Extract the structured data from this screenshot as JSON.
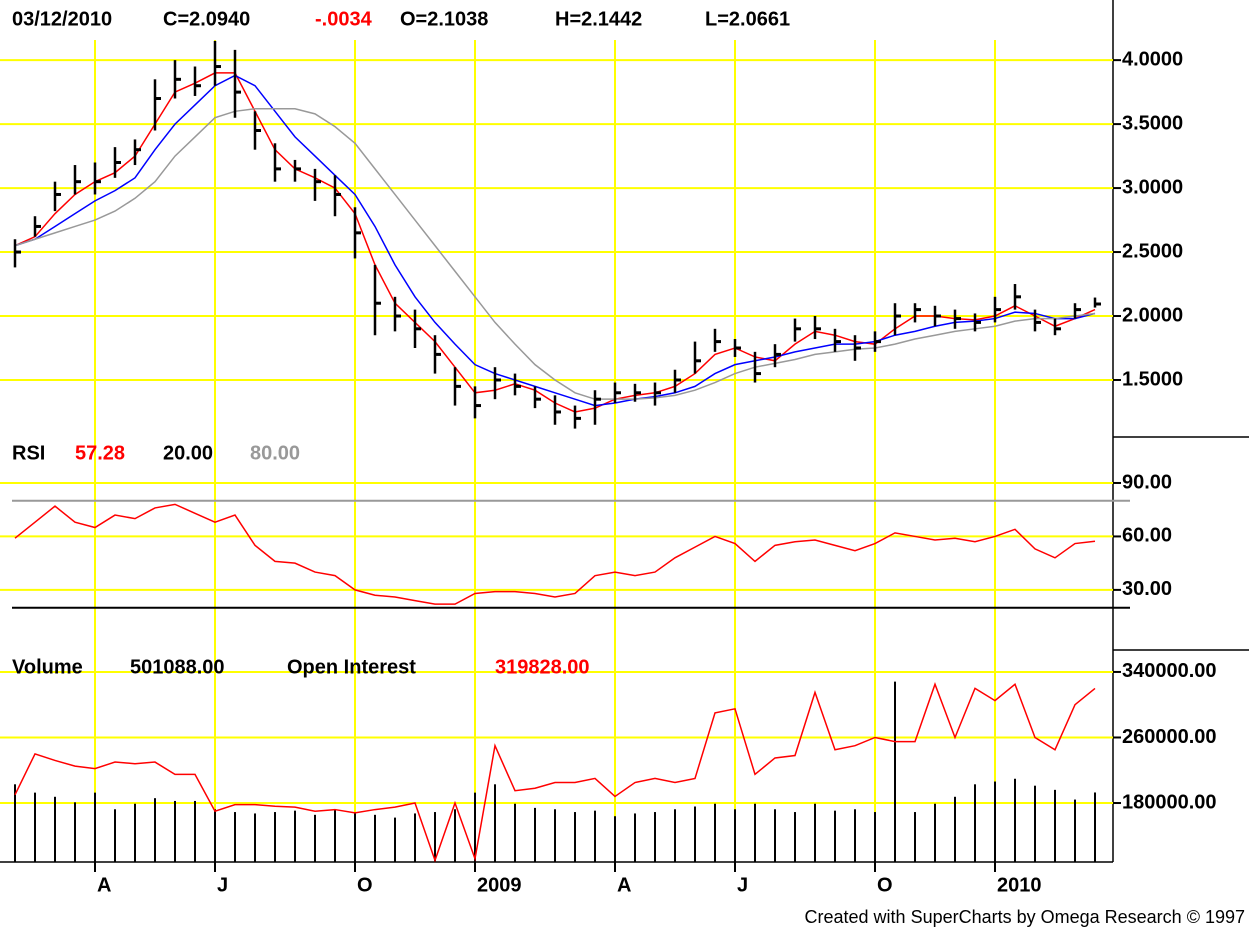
{
  "chart_data": [
    {
      "type": "ohlc",
      "header": {
        "date": "03/12/2010",
        "close": "C=2.0940",
        "change": "-.0034",
        "open": "O=2.1038",
        "high": "H=2.1442",
        "low": "L=2.0661"
      },
      "categories": [
        null,
        null,
        null,
        null,
        "A",
        null,
        null,
        null,
        null,
        null,
        "J",
        null,
        null,
        null,
        null,
        null,
        null,
        "O",
        null,
        null,
        null,
        null,
        null,
        "2009",
        null,
        null,
        null,
        null,
        null,
        null,
        "A",
        null,
        null,
        null,
        null,
        null,
        "J",
        null,
        null,
        null,
        null,
        null,
        null,
        "O",
        null,
        null,
        null,
        null,
        null,
        "2010",
        null,
        null,
        null,
        null,
        null
      ],
      "close": [
        2.5,
        2.7,
        2.95,
        3.05,
        3.05,
        3.2,
        3.3,
        3.7,
        3.85,
        3.8,
        3.95,
        3.75,
        3.45,
        3.15,
        3.15,
        3.05,
        2.95,
        2.65,
        2.1,
        2.0,
        1.9,
        1.7,
        1.45,
        1.3,
        1.5,
        1.45,
        1.35,
        1.25,
        1.2,
        1.35,
        1.4,
        1.4,
        1.4,
        1.5,
        1.65,
        1.8,
        1.75,
        1.55,
        1.7,
        1.9,
        1.9,
        1.8,
        1.75,
        1.8,
        2.0,
        2.05,
        2.0,
        1.98,
        1.95,
        2.05,
        2.15,
        1.95,
        1.9,
        2.05,
        2.094
      ],
      "high": [
        2.6,
        2.78,
        3.05,
        3.18,
        3.2,
        3.32,
        3.38,
        3.85,
        4.0,
        3.95,
        4.15,
        4.08,
        3.6,
        3.35,
        3.22,
        3.15,
        3.1,
        2.85,
        2.4,
        2.15,
        2.05,
        1.85,
        1.6,
        1.45,
        1.6,
        1.55,
        1.45,
        1.38,
        1.3,
        1.42,
        1.48,
        1.47,
        1.48,
        1.58,
        1.8,
        1.9,
        1.82,
        1.72,
        1.78,
        1.98,
        2.0,
        1.9,
        1.85,
        1.88,
        2.1,
        2.1,
        2.08,
        2.05,
        2.02,
        2.15,
        2.25,
        2.05,
        1.98,
        2.1,
        2.1442
      ],
      "low": [
        2.38,
        2.62,
        2.82,
        2.95,
        2.95,
        3.08,
        3.18,
        3.45,
        3.7,
        3.72,
        3.8,
        3.55,
        3.3,
        3.05,
        3.05,
        2.9,
        2.78,
        2.45,
        1.85,
        1.88,
        1.75,
        1.55,
        1.3,
        1.2,
        1.35,
        1.38,
        1.28,
        1.15,
        1.12,
        1.15,
        1.32,
        1.33,
        1.3,
        1.4,
        1.55,
        1.72,
        1.68,
        1.48,
        1.6,
        1.8,
        1.82,
        1.72,
        1.65,
        1.72,
        1.85,
        1.95,
        1.92,
        1.9,
        1.88,
        1.95,
        2.05,
        1.88,
        1.85,
        1.98,
        2.0661
      ],
      "color": "#000000",
      "series": [
        {
          "color": "#ff0000",
          "values": [
            2.55,
            2.62,
            2.8,
            2.95,
            3.05,
            3.12,
            3.25,
            3.5,
            3.75,
            3.82,
            3.9,
            3.9,
            3.6,
            3.3,
            3.15,
            3.08,
            3.0,
            2.8,
            2.4,
            2.1,
            1.95,
            1.8,
            1.6,
            1.4,
            1.42,
            1.47,
            1.42,
            1.32,
            1.25,
            1.28,
            1.35,
            1.38,
            1.4,
            1.45,
            1.55,
            1.7,
            1.75,
            1.68,
            1.65,
            1.78,
            1.88,
            1.85,
            1.8,
            1.78,
            1.9,
            2.0,
            2.0,
            1.98,
            1.97,
            2.0,
            2.08,
            2.0,
            1.92,
            1.98,
            2.05
          ]
        },
        {
          "color": "#0000ff",
          "values": [
            2.55,
            2.6,
            2.7,
            2.8,
            2.9,
            2.98,
            3.08,
            3.3,
            3.5,
            3.65,
            3.8,
            3.88,
            3.8,
            3.6,
            3.4,
            3.25,
            3.1,
            2.95,
            2.7,
            2.4,
            2.15,
            1.95,
            1.78,
            1.62,
            1.55,
            1.5,
            1.45,
            1.4,
            1.35,
            1.3,
            1.32,
            1.35,
            1.37,
            1.4,
            1.45,
            1.55,
            1.62,
            1.65,
            1.68,
            1.72,
            1.75,
            1.78,
            1.78,
            1.8,
            1.85,
            1.88,
            1.92,
            1.95,
            1.96,
            1.98,
            2.03,
            2.02,
            1.98,
            1.98,
            2.02
          ]
        },
        {
          "color": "#999999",
          "values": [
            2.55,
            2.6,
            2.65,
            2.7,
            2.75,
            2.82,
            2.92,
            3.05,
            3.25,
            3.4,
            3.55,
            3.6,
            3.62,
            3.62,
            3.62,
            3.58,
            3.48,
            3.35,
            3.15,
            2.95,
            2.75,
            2.55,
            2.35,
            2.15,
            1.95,
            1.78,
            1.62,
            1.5,
            1.4,
            1.35,
            1.35,
            1.35,
            1.36,
            1.38,
            1.42,
            1.48,
            1.55,
            1.6,
            1.63,
            1.66,
            1.7,
            1.72,
            1.74,
            1.75,
            1.78,
            1.82,
            1.85,
            1.88,
            1.9,
            1.92,
            1.96,
            1.98,
            1.98,
            2.0,
            2.02
          ]
        }
      ],
      "ylim": [
        1.07,
        4.47
      ],
      "yticks": [
        {
          "value": 4,
          "label": "4.0000"
        },
        {
          "value": 3.5,
          "label": "3.5000"
        },
        {
          "value": 3,
          "label": "3.0000"
        },
        {
          "value": 2.5,
          "label": "2.5000"
        },
        {
          "value": 2,
          "label": "2.0000"
        },
        {
          "value": 1.5,
          "label": "1.5000"
        }
      ],
      "grid": true
    },
    {
      "type": "line",
      "series": [
        {
          "name": "RSI",
          "color": "#ff0000",
          "values": [
            59,
            68,
            77,
            68,
            65,
            72,
            70,
            76,
            78,
            73,
            68,
            72,
            55,
            46,
            45,
            40,
            38,
            30,
            27,
            26,
            24,
            22,
            22,
            28,
            29,
            29,
            28,
            26,
            28,
            38,
            40,
            38,
            40,
            48,
            54,
            60,
            56,
            46,
            55,
            57,
            58,
            55,
            52,
            56,
            62,
            60,
            58,
            59,
            57,
            60,
            64,
            53,
            48,
            56,
            57.28
          ]
        }
      ],
      "levels": [
        {
          "value": 20,
          "label": "20.00",
          "color": "#000000"
        },
        {
          "value": 80,
          "label": "80.00",
          "color": "#999999"
        }
      ],
      "ylim": [
        10.3,
        115.8
      ],
      "yticks": [
        {
          "value": 90,
          "label": "90.00"
        },
        {
          "value": 60,
          "label": "60.00"
        },
        {
          "value": 30,
          "label": "30.00"
        }
      ],
      "grid": true
    },
    {
      "type": "bar-line",
      "series": [
        {
          "name": "Volume",
          "color": "#000000",
          "axis": "y2",
          "values": [
            560000,
            500000,
            470000,
            430000,
            500000,
            380000,
            420000,
            460000,
            440000,
            440000,
            380000,
            360000,
            350000,
            360000,
            370000,
            340000,
            380000,
            360000,
            340000,
            320000,
            350000,
            360000,
            380000,
            500000,
            560000,
            420000,
            390000,
            380000,
            360000,
            370000,
            330000,
            350000,
            360000,
            380000,
            400000,
            420000,
            380000,
            420000,
            380000,
            360000,
            420000,
            370000,
            380000,
            360000,
            1300000,
            360000,
            420000,
            470000,
            560000,
            580000,
            600000,
            550000,
            520000,
            450000,
            501088
          ],
          "value_labels": {
            "54": "501088.00"
          }
        },
        {
          "name": "Open Interest",
          "color": "#ff0000",
          "values": [
            190000,
            240000,
            232000,
            225000,
            222000,
            230000,
            228000,
            230000,
            215000,
            215000,
            170000,
            178000,
            178000,
            176000,
            175000,
            170000,
            172000,
            168000,
            172000,
            175000,
            180000,
            110000,
            180000,
            112000,
            250000,
            195000,
            198000,
            205000,
            205000,
            210000,
            188000,
            205000,
            210000,
            205000,
            210000,
            290000,
            295000,
            215000,
            235000,
            238000,
            315000,
            245000,
            250000,
            260000,
            255000,
            255000,
            325000,
            260000,
            320000,
            305000,
            325000,
            260000,
            245000,
            300000,
            319828
          ],
          "value_labels": {
            "54": "319828.00"
          }
        }
      ],
      "ylim": [
        108000,
        379000
      ],
      "y2lim": [
        0,
        1600000
      ],
      "yticks": [
        {
          "value": 340000,
          "label": "340000.00"
        },
        {
          "value": 260000,
          "label": "260000.00"
        },
        {
          "value": 180000,
          "label": "180000.00"
        }
      ],
      "grid": true
    }
  ],
  "footer": "Created with SuperCharts by Omega Research © 1997"
}
